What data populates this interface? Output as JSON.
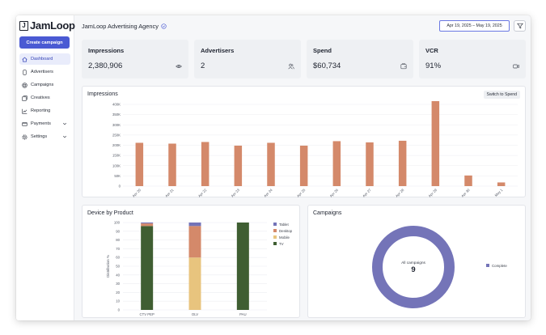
{
  "sidebar": {
    "logo_mark": "J",
    "logo_text": "JamLoop",
    "create_label": "Create campaign",
    "items": [
      {
        "label": "Dashboard",
        "icon": "home-icon",
        "active": true
      },
      {
        "label": "Advertisers",
        "icon": "phone-icon"
      },
      {
        "label": "Campaigns",
        "icon": "target-icon"
      },
      {
        "label": "Creatives",
        "icon": "image-stack-icon"
      },
      {
        "label": "Reporting",
        "icon": "line-chart-icon"
      },
      {
        "label": "Payments",
        "icon": "card-icon",
        "has_chevron": true
      },
      {
        "label": "Settings",
        "icon": "gear-icon",
        "has_chevron": true
      }
    ]
  },
  "header": {
    "title": "JamLoop Advertising Agency",
    "date_range": "Apr 19, 2025 – May 19, 2025"
  },
  "kpis": [
    {
      "label": "Impressions",
      "value": "2,380,906",
      "icon": "eye-icon"
    },
    {
      "label": "Advertisers",
      "value": "2",
      "icon": "users-icon"
    },
    {
      "label": "Spend",
      "value": "$60,734",
      "icon": "wallet-icon"
    },
    {
      "label": "VCR",
      "value": "91%",
      "icon": "video-icon"
    }
  ],
  "impressions_panel": {
    "title": "Impressions",
    "switch_label": "Switch to Spend"
  },
  "device_panel": {
    "title": "Device by Product",
    "ylabel": "Distribution %"
  },
  "campaigns_panel": {
    "title": "Campaigns",
    "center_label": "All campaigns",
    "center_value": "9",
    "legend": [
      "Complete"
    ]
  },
  "colors": {
    "accent": "#4a5ad3",
    "bar": "#d4896a",
    "tablet": "#7373b8",
    "desktop": "#d4896a",
    "mobile": "#e8c47e",
    "tv": "#3f5e32",
    "donut": "#7474b8"
  },
  "chart_data": [
    {
      "type": "bar",
      "categories": [
        "Apr 20",
        "Apr 21",
        "Apr 22",
        "Apr 23",
        "Apr 24",
        "Apr 25",
        "Apr 26",
        "Apr 27",
        "Apr 28",
        "Apr 29",
        "Apr 30",
        "May 1"
      ],
      "values": [
        212000,
        208000,
        216000,
        198000,
        212000,
        198000,
        220000,
        214000,
        222000,
        416000,
        52000,
        18000
      ],
      "yticks": [
        "0",
        "50K",
        "100K",
        "150K",
        "200K",
        "250K",
        "300K",
        "350K",
        "400K"
      ],
      "ylim": [
        0,
        400000
      ],
      "grid": true
    },
    {
      "type": "bar",
      "stacked": true,
      "categories": [
        "CTV PEP",
        "OLV",
        "PAU"
      ],
      "series": [
        {
          "name": "TV",
          "values": [
            96,
            0,
            100
          ]
        },
        {
          "name": "Mobile",
          "values": [
            0,
            60,
            0
          ]
        },
        {
          "name": "Desktop",
          "values": [
            3,
            36,
            0
          ]
        },
        {
          "name": "Tablet",
          "values": [
            1,
            4,
            0
          ]
        }
      ],
      "legend": [
        "Tablet",
        "Desktop",
        "Mobile",
        "TV"
      ],
      "yticks": [
        "0",
        "10",
        "20",
        "30",
        "40",
        "50",
        "60",
        "70",
        "80",
        "90",
        "100"
      ],
      "ylabel": "Distribution %",
      "ylim": [
        0,
        100
      ],
      "grid": true,
      "legend_position": "right"
    },
    {
      "type": "pie",
      "donut": true,
      "categories": [
        "Complete"
      ],
      "values": [
        9
      ]
    }
  ]
}
